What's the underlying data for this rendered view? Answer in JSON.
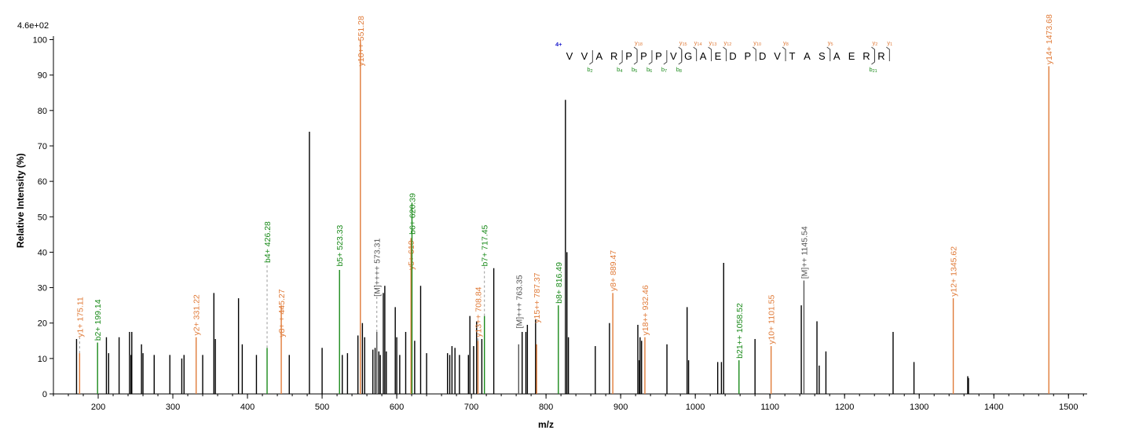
{
  "colors": {
    "y_ion": "#e07b39",
    "b_ion": "#1a8a1a",
    "precursor": "#555555",
    "unassigned": "#000000",
    "charge": "#1a1acc"
  },
  "chart_data": {
    "type": "bar",
    "xlabel": "m/z",
    "ylabel": "Relative  Intensity (%)",
    "scale_label": "4.6e+02",
    "xlim": [
      140,
      1525
    ],
    "ylim": [
      0,
      101
    ],
    "xticks": [
      200,
      300,
      400,
      500,
      600,
      700,
      800,
      900,
      1000,
      1100,
      1200,
      1300,
      1400,
      1500
    ],
    "yticks": [
      0,
      10,
      20,
      30,
      40,
      50,
      60,
      70,
      80,
      90,
      100
    ],
    "peaks": [
      {
        "mz": 171,
        "i": 15.5
      },
      {
        "mz": 211,
        "i": 16
      },
      {
        "mz": 214,
        "i": 11.5
      },
      {
        "mz": 228,
        "i": 16
      },
      {
        "mz": 242,
        "i": 17.5
      },
      {
        "mz": 244,
        "i": 11
      },
      {
        "mz": 245,
        "i": 17.5
      },
      {
        "mz": 258,
        "i": 14
      },
      {
        "mz": 260,
        "i": 11.5
      },
      {
        "mz": 275,
        "i": 11
      },
      {
        "mz": 296,
        "i": 11
      },
      {
        "mz": 312,
        "i": 10
      },
      {
        "mz": 315,
        "i": 11
      },
      {
        "mz": 340,
        "i": 11
      },
      {
        "mz": 355,
        "i": 28.5
      },
      {
        "mz": 357,
        "i": 15.5
      },
      {
        "mz": 388,
        "i": 27
      },
      {
        "mz": 393,
        "i": 14
      },
      {
        "mz": 412,
        "i": 11
      },
      {
        "mz": 456,
        "i": 11
      },
      {
        "mz": 483,
        "i": 74
      },
      {
        "mz": 500,
        "i": 13
      },
      {
        "mz": 527,
        "i": 11
      },
      {
        "mz": 534,
        "i": 11.5
      },
      {
        "mz": 548,
        "i": 16.5
      },
      {
        "mz": 554,
        "i": 20
      },
      {
        "mz": 557,
        "i": 16
      },
      {
        "mz": 568,
        "i": 12.5
      },
      {
        "mz": 571,
        "i": 13
      },
      {
        "mz": 576,
        "i": 12
      },
      {
        "mz": 578,
        "i": 11
      },
      {
        "mz": 582,
        "i": 28.5
      },
      {
        "mz": 584,
        "i": 30.5
      },
      {
        "mz": 586,
        "i": 12
      },
      {
        "mz": 598,
        "i": 24.5
      },
      {
        "mz": 600,
        "i": 16
      },
      {
        "mz": 604,
        "i": 11
      },
      {
        "mz": 612,
        "i": 17.5
      },
      {
        "mz": 624,
        "i": 15
      },
      {
        "mz": 632,
        "i": 30.5
      },
      {
        "mz": 640,
        "i": 11.5
      },
      {
        "mz": 668,
        "i": 11.5
      },
      {
        "mz": 671,
        "i": 11
      },
      {
        "mz": 674,
        "i": 13.5
      },
      {
        "mz": 678,
        "i": 13
      },
      {
        "mz": 684,
        "i": 11
      },
      {
        "mz": 696,
        "i": 11
      },
      {
        "mz": 698,
        "i": 22
      },
      {
        "mz": 703,
        "i": 13.5
      },
      {
        "mz": 707,
        "i": 20.5
      },
      {
        "mz": 714,
        "i": 15.5
      },
      {
        "mz": 730,
        "i": 35.5
      },
      {
        "mz": 768,
        "i": 17.5
      },
      {
        "mz": 773,
        "i": 17.5
      },
      {
        "mz": 775,
        "i": 19.5
      },
      {
        "mz": 786,
        "i": 21
      },
      {
        "mz": 826,
        "i": 83
      },
      {
        "mz": 828,
        "i": 40
      },
      {
        "mz": 830,
        "i": 16
      },
      {
        "mz": 866,
        "i": 13.5
      },
      {
        "mz": 885,
        "i": 20
      },
      {
        "mz": 923,
        "i": 19.5
      },
      {
        "mz": 925,
        "i": 9.5
      },
      {
        "mz": 926,
        "i": 16
      },
      {
        "mz": 928,
        "i": 15
      },
      {
        "mz": 962,
        "i": 14
      },
      {
        "mz": 989,
        "i": 24.5
      },
      {
        "mz": 991,
        "i": 9.5
      },
      {
        "mz": 1030,
        "i": 9
      },
      {
        "mz": 1035,
        "i": 9
      },
      {
        "mz": 1038,
        "i": 37
      },
      {
        "mz": 1080,
        "i": 15.5
      },
      {
        "mz": 1142,
        "i": 25
      },
      {
        "mz": 1163,
        "i": 20.5
      },
      {
        "mz": 1166,
        "i": 8
      },
      {
        "mz": 1175,
        "i": 12
      },
      {
        "mz": 1265,
        "i": 17.5
      },
      {
        "mz": 1293,
        "i": 9
      },
      {
        "mz": 1365,
        "i": 5
      },
      {
        "mz": 1366,
        "i": 4.5
      }
    ],
    "annotations": [
      {
        "label": "y1+ 175.11",
        "mz": 175.11,
        "i": 11.5,
        "type": "y",
        "dashed": true,
        "text_i": 16
      },
      {
        "label": "b2+ 199.14",
        "mz": 199.14,
        "i": 14.5,
        "type": "b",
        "dashed": false,
        "text_i": 15
      },
      {
        "label": "y2+ 331.22",
        "mz": 331.22,
        "i": 16,
        "type": "y",
        "dashed": false,
        "text_i": 16.5
      },
      {
        "label": "b4+ 426.28",
        "mz": 426.28,
        "i": 13,
        "type": "b",
        "dashed": true,
        "text_i": 37
      },
      {
        "label": "y8+ + 445.27",
        "mz": 445.27,
        "i": 25,
        "type": "y",
        "dashed": false,
        "text_i": 16
      },
      {
        "label": "b5+ 523.33",
        "mz": 523.33,
        "i": 35,
        "type": "b",
        "dashed": false,
        "text_i": 36
      },
      {
        "label": "y10++ 551.28",
        "mz": 551.28,
        "i": 100,
        "type": "y",
        "dashed": false,
        "text_i": 92.5
      },
      {
        "label": "[M]++++ 573.31",
        "mz": 573.31,
        "i": 17.5,
        "type": "m",
        "dashed": true,
        "text_i": 27.5
      },
      {
        "label": "y5+ 619",
        "mz": 619.1,
        "i": 44,
        "type": "y",
        "dashed": false,
        "text_i": 35
      },
      {
        "label": "b6+ 620.39",
        "mz": 620.39,
        "i": 54,
        "type": "b",
        "dashed": false,
        "text_i": 45
      },
      {
        "label": "y13++ 708.84",
        "mz": 708.84,
        "i": 15,
        "type": "y",
        "dashed": true,
        "text_i": 16
      },
      {
        "label": "b7+ 717.45",
        "mz": 717.45,
        "i": 22,
        "type": "b",
        "dashed": true,
        "text_i": 36
      },
      {
        "label": "[M]+++ 763.35",
        "mz": 763.35,
        "i": 14,
        "type": "m",
        "dashed": false,
        "text_i": 18.5
      },
      {
        "label": "y15++ 787.37",
        "mz": 787.37,
        "i": 14,
        "type": "y",
        "dashed": false,
        "text_i": 20
      },
      {
        "label": "b8+ 816.49",
        "mz": 816.49,
        "i": 25,
        "type": "b",
        "dashed": false,
        "text_i": 25.5
      },
      {
        "label": "y8+ 889.47",
        "mz": 889.47,
        "i": 28.5,
        "type": "y",
        "dashed": false,
        "text_i": 29
      },
      {
        "label": "y18++ 932.46",
        "mz": 932.46,
        "i": 16,
        "type": "y",
        "dashed": false,
        "text_i": 16.5
      },
      {
        "label": "b21++ 1058.52",
        "mz": 1058.52,
        "i": 9.5,
        "type": "b",
        "dashed": false,
        "text_i": 10
      },
      {
        "label": "y10+ 1101.55",
        "mz": 1101.55,
        "i": 13.5,
        "type": "y",
        "dashed": false,
        "text_i": 14
      },
      {
        "label": "[M]++ 1145.54",
        "mz": 1145.54,
        "i": 32,
        "type": "m",
        "dashed": false,
        "text_i": 32.5
      },
      {
        "label": "y12+ 1345.62",
        "mz": 1345.62,
        "i": 27,
        "type": "y",
        "dashed": false,
        "text_i": 27.5
      },
      {
        "label": "y14+ 1473.68",
        "mz": 1473.68,
        "i": 92.5,
        "type": "y",
        "dashed": false,
        "text_i": 93
      }
    ],
    "sequence": {
      "charge": "4+",
      "letters": [
        "V",
        "V",
        "A",
        "R",
        "P",
        "P",
        "P",
        "V",
        "G",
        "A",
        "E",
        "D",
        "P",
        "D",
        "V",
        "T",
        "A",
        "S",
        "A",
        "E",
        "R",
        "R"
      ],
      "y_marks": [
        {
          "after": 5,
          "label": "y",
          "sub": "18"
        },
        {
          "after": 8,
          "label": "y",
          "sub": "15"
        },
        {
          "after": 9,
          "label": "y",
          "sub": "14"
        },
        {
          "after": 10,
          "label": "y",
          "sub": "13"
        },
        {
          "after": 11,
          "label": "y",
          "sub": "12"
        },
        {
          "after": 13,
          "label": "y",
          "sub": "10"
        },
        {
          "after": 15,
          "label": "y",
          "sub": "8"
        },
        {
          "after": 18,
          "label": "y",
          "sub": "5"
        },
        {
          "after": 21,
          "label": "y",
          "sub": "2"
        },
        {
          "after": 22,
          "label": "y",
          "sub": "1"
        }
      ],
      "b_marks": [
        {
          "after": 2,
          "label": "b",
          "sub": "2"
        },
        {
          "after": 4,
          "label": "b",
          "sub": "4"
        },
        {
          "after": 5,
          "label": "b",
          "sub": "5"
        },
        {
          "after": 6,
          "label": "b",
          "sub": "6"
        },
        {
          "after": 7,
          "label": "b",
          "sub": "7"
        },
        {
          "after": 8,
          "label": "b",
          "sub": "8"
        },
        {
          "after": 21,
          "label": "b",
          "sub": "21"
        }
      ]
    }
  }
}
